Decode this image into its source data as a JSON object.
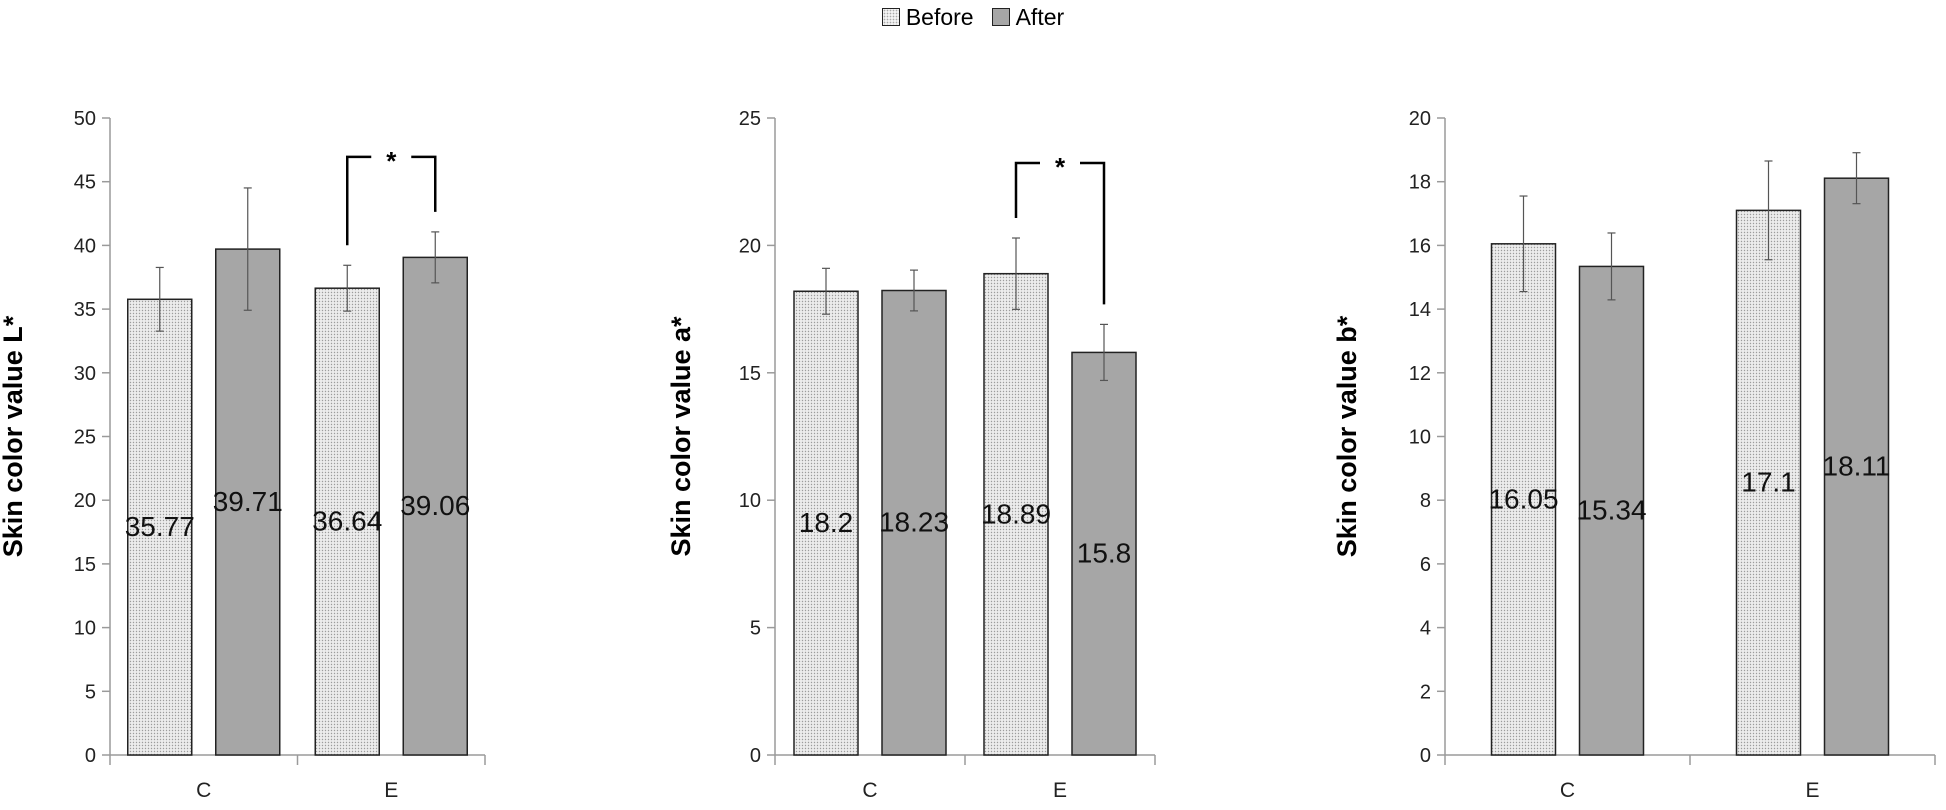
{
  "legend": {
    "before_label": "Before",
    "after_label": "After"
  },
  "colors": {
    "before_fill": "#ececec",
    "after_fill": "#a6a6a6",
    "outline": "#222222",
    "axis": "#9a9a9a"
  },
  "chart_data": [
    {
      "type": "bar",
      "categories": [
        "C",
        "E"
      ],
      "ylabel": "Skin color value L*",
      "ylim": [
        0,
        50
      ],
      "yticks": [
        0,
        5,
        10,
        15,
        20,
        25,
        30,
        35,
        40,
        45,
        50
      ],
      "series": [
        {
          "name": "Before",
          "values": [
            35.77,
            36.64
          ],
          "labels": [
            "35.77",
            "36.64"
          ],
          "errors": [
            2.5,
            1.8
          ]
        },
        {
          "name": "After",
          "values": [
            39.71,
            39.06
          ],
          "labels": [
            "39.71",
            "39.06"
          ],
          "errors": [
            4.8,
            2.0
          ]
        }
      ],
      "significance": [
        {
          "category": "E",
          "label": "*"
        }
      ]
    },
    {
      "type": "bar",
      "categories": [
        "C",
        "E"
      ],
      "ylabel": "Skin color value a*",
      "ylim": [
        0,
        25
      ],
      "yticks": [
        0,
        5,
        10,
        15,
        20,
        25
      ],
      "series": [
        {
          "name": "Before",
          "values": [
            18.2,
            18.89
          ],
          "labels": [
            "18.2",
            "18.89"
          ],
          "errors": [
            0.9,
            1.4
          ]
        },
        {
          "name": "After",
          "values": [
            18.23,
            15.8
          ],
          "labels": [
            "18.23",
            "15.8"
          ],
          "errors": [
            0.8,
            1.1
          ]
        }
      ],
      "significance": [
        {
          "category": "E",
          "label": "*"
        }
      ]
    },
    {
      "type": "bar",
      "categories": [
        "C",
        "E"
      ],
      "ylabel": "Skin color value b*",
      "ylim": [
        0,
        20
      ],
      "yticks": [
        0,
        2,
        4,
        6,
        8,
        10,
        12,
        14,
        16,
        18,
        20
      ],
      "series": [
        {
          "name": "Before",
          "values": [
            16.05,
            17.1
          ],
          "labels": [
            "16.05",
            "17.1"
          ],
          "errors": [
            1.5,
            1.55
          ]
        },
        {
          "name": "After",
          "values": [
            15.34,
            18.11
          ],
          "labels": [
            "15.34",
            "18.11"
          ],
          "errors": [
            1.05,
            0.8
          ]
        }
      ],
      "significance": []
    }
  ]
}
